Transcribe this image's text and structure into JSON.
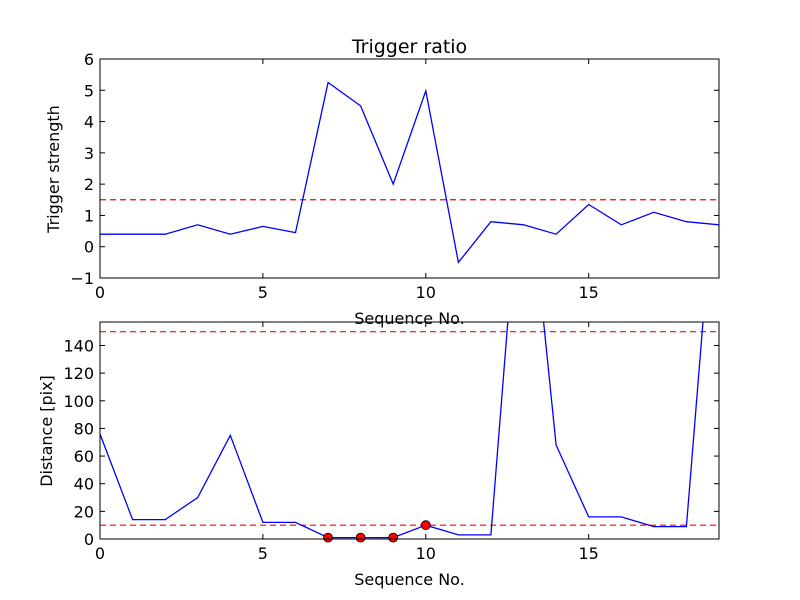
{
  "chart_data": [
    {
      "type": "line",
      "title": "Trigger ratio",
      "xlabel": "Sequence No.",
      "ylabel": "Trigger strength",
      "xlim": [
        0,
        19
      ],
      "ylim": [
        -1,
        6
      ],
      "x_ticks": [
        "0",
        "5",
        "10",
        "15"
      ],
      "y_ticks": [
        "−1",
        "0",
        "1",
        "2",
        "3",
        "4",
        "5",
        "6"
      ],
      "grid": false,
      "series": [
        {
          "color": "#0000ff",
          "x": [
            0,
            1,
            2,
            3,
            4,
            5,
            6,
            7,
            8,
            9,
            10,
            11,
            12,
            13,
            14,
            15,
            16,
            17,
            18,
            19
          ],
          "y": [
            0.4,
            0.4,
            0.4,
            0.7,
            0.4,
            0.65,
            0.45,
            5.25,
            4.5,
            2.0,
            4.98,
            -0.5,
            0.8,
            0.7,
            0.4,
            1.35,
            0.7,
            1.1,
            0.8,
            0.7
          ]
        }
      ],
      "hlines": [
        {
          "y": 1.5,
          "color": "#ff0000",
          "style": "dashed"
        }
      ]
    },
    {
      "type": "line",
      "title": "",
      "xlabel": "Sequence No.",
      "ylabel": "Distance [pix]",
      "xlim": [
        0,
        19
      ],
      "ylim": [
        0,
        157
      ],
      "x_ticks": [
        "0",
        "5",
        "10",
        "15"
      ],
      "y_ticks": [
        "0",
        "20",
        "40",
        "60",
        "80",
        "100",
        "120",
        "140"
      ],
      "grid": false,
      "series": [
        {
          "color": "#0000ff",
          "x": [
            0,
            1,
            2,
            3,
            4,
            5,
            6,
            7,
            8,
            9,
            10,
            11,
            12,
            13,
            14,
            15,
            16,
            17,
            18,
            19
          ],
          "y": [
            76,
            14,
            14,
            30,
            75,
            12,
            12,
            1,
            1,
            1,
            10,
            3,
            3,
            300,
            68,
            16,
            16,
            9,
            9,
            300
          ]
        }
      ],
      "markers": {
        "color": "#ff0000",
        "x": [
          7,
          8,
          9,
          10
        ],
        "y": [
          1,
          1,
          1,
          10
        ]
      },
      "hlines": [
        {
          "y": 150,
          "color": "#ff0000",
          "style": "dashed"
        },
        {
          "y": 10,
          "color": "#ff0000",
          "style": "dashed"
        }
      ]
    }
  ]
}
